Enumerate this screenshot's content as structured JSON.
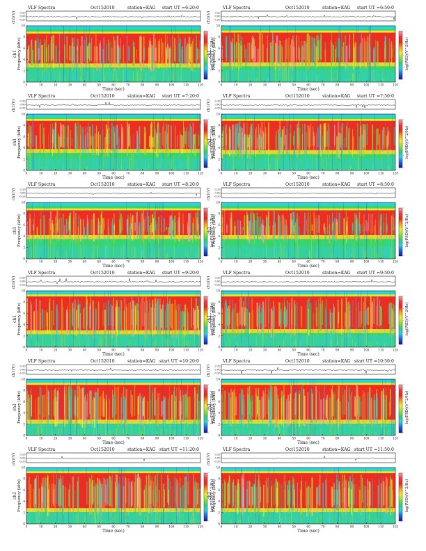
{
  "page": {
    "colorbar_ticks": [
      "-",
      "-",
      "-",
      "-",
      "-"
    ]
  },
  "colormap": [
    "#0b1f8e",
    "#1f5fe0",
    "#2fd0e6",
    "#31cf74",
    "#8fe040",
    "#f4ee2a",
    "#f7a11c",
    "#ea2a1d",
    "#f13c3c",
    "#f7a2b4"
  ],
  "chart_data": [
    {
      "type": "heatmap",
      "title": "VLF Spectra",
      "date": "Oct152010",
      "station": "station=KAG",
      "start": "start  UT =6:20:0",
      "xlabel": "Time (sec)",
      "ylabel": "Frequency (kHz)",
      "channel": "ch1",
      "top_ylabel": "ch1(V)",
      "colorbar_label": "log(PSD)(V^2/Hz)",
      "x": [
        0,
        10,
        20,
        30,
        40,
        50,
        60,
        70,
        80,
        90,
        100,
        110,
        120
      ],
      "y_ticks": [
        0,
        2,
        4,
        6,
        8,
        10
      ],
      "top_y_ticks": [
        "0.20",
        "0.00",
        "-0.20"
      ],
      "xlim": [
        0,
        120
      ],
      "ylim": [
        0,
        10
      ],
      "red_band_khz": [
        3.3,
        8.6
      ]
    },
    {
      "type": "heatmap",
      "title": "VLF Spectra",
      "date": "Oct152010",
      "station": "station=KAG",
      "start": "start  UT =6:50:0",
      "xlabel": "Time (sec)",
      "ylabel": "Frequency (kHz)",
      "channel": "ch1",
      "top_ylabel": "ch1(V)",
      "colorbar_label": "log(PSD)(V^2/Hz)",
      "x": [
        0,
        10,
        20,
        30,
        40,
        50,
        60,
        70,
        80,
        90,
        100,
        110,
        120
      ],
      "y_ticks": [
        0,
        2,
        4,
        6,
        8,
        10
      ],
      "top_y_ticks": [
        "0.20",
        "0.00",
        "-0.20"
      ],
      "xlim": [
        0,
        120
      ],
      "ylim": [
        0,
        10
      ],
      "red_band_khz": [
        3.5,
        8.8
      ]
    },
    {
      "type": "heatmap",
      "title": "VLF Spectra",
      "date": "Oct152010",
      "station": "station=KAG",
      "start": "start  UT =7:20:0",
      "xlabel": "Time (sec)",
      "ylabel": "Frequency (kHz)",
      "channel": "ch1",
      "top_ylabel": "ch1(V)",
      "colorbar_label": "log(PSD)(V^2/Hz)",
      "x": [
        0,
        10,
        20,
        30,
        40,
        50,
        60,
        70,
        80,
        90,
        100,
        110,
        120
      ],
      "y_ticks": [
        0,
        2,
        4,
        6,
        8,
        10
      ],
      "top_y_ticks": [
        "0.20",
        "0.00",
        "-0.20"
      ],
      "xlim": [
        0,
        120
      ],
      "ylim": [
        0,
        10
      ],
      "red_band_khz": [
        3.8,
        8.8
      ]
    },
    {
      "type": "heatmap",
      "title": "VLF Spectra",
      "date": "Oct152010",
      "station": "station=KAG",
      "start": "start  UT =7:50:0",
      "xlabel": "Time (sec)",
      "ylabel": "Frequency (kHz)",
      "channel": "ch1",
      "top_ylabel": "ch1(V)",
      "colorbar_label": "log(PSD)(V^2/Hz)",
      "x": [
        0,
        10,
        20,
        30,
        40,
        50,
        60,
        70,
        80,
        90,
        100,
        110,
        120
      ],
      "y_ticks": [
        0,
        2,
        4,
        6,
        8,
        10
      ],
      "top_y_ticks": [
        "0.20",
        "0.00",
        "-0.20"
      ],
      "xlim": [
        0,
        120
      ],
      "ylim": [
        0,
        10
      ],
      "red_band_khz": [
        3.6,
        8.8
      ]
    },
    {
      "type": "heatmap",
      "title": "VLF Spectra",
      "date": "Oct152010",
      "station": "station=KAG",
      "start": "start  UT =8:20:0",
      "xlabel": "Time (sec)",
      "ylabel": "Frequency (kHz)",
      "channel": "ch1",
      "top_ylabel": "ch1(V)",
      "colorbar_label": "log(PSD)(V^2/Hz)",
      "x": [
        0,
        10,
        20,
        30,
        40,
        50,
        60,
        70,
        80,
        90,
        100,
        110,
        120
      ],
      "y_ticks": [
        0,
        2,
        4,
        6,
        8,
        10
      ],
      "top_y_ticks": [
        "0.20",
        "0.00",
        "-0.20"
      ],
      "xlim": [
        0,
        120
      ],
      "ylim": [
        0,
        10
      ],
      "red_band_khz": [
        4.2,
        8.6
      ]
    },
    {
      "type": "heatmap",
      "title": "VLF Spectra",
      "date": "Oct152010",
      "station": "station=KAG",
      "start": "start  UT =8:50:0",
      "xlabel": "Time (sec)",
      "ylabel": "Frequency (kHz)",
      "channel": "ch1",
      "top_ylabel": "ch1(V)",
      "colorbar_label": "log(PSD)(V^2/Hz)",
      "x": [
        0,
        10,
        20,
        30,
        40,
        50,
        60,
        70,
        80,
        90,
        100,
        110,
        120
      ],
      "y_ticks": [
        0,
        2,
        4,
        6,
        8,
        10
      ],
      "top_y_ticks": [
        "0.20",
        "0.00",
        "-0.20"
      ],
      "xlim": [
        0,
        120
      ],
      "ylim": [
        0,
        10
      ],
      "red_band_khz": [
        4.2,
        8.6
      ]
    },
    {
      "type": "heatmap",
      "title": "VLF Spectra",
      "date": "Oct152010",
      "station": "station=KAG",
      "start": "start  UT =9:20:0",
      "xlabel": "Time (sec)",
      "ylabel": "Frequency (kHz)",
      "channel": "ch1",
      "top_ylabel": "ch1(V)",
      "colorbar_label": "log(PSD)(V^2/Hz)",
      "x": [
        0,
        10,
        20,
        30,
        40,
        50,
        60,
        70,
        80,
        90,
        100,
        110,
        120
      ],
      "y_ticks": [
        0,
        2,
        4,
        6,
        8,
        10
      ],
      "top_y_ticks": [
        "0.20",
        "0.00",
        "-0.20"
      ],
      "xlim": [
        0,
        120
      ],
      "ylim": [
        0,
        10
      ],
      "red_band_khz": [
        3.0,
        9.0
      ]
    },
    {
      "type": "heatmap",
      "title": "VLF Spectra",
      "date": "Oct152010",
      "station": "station=KAG",
      "start": "start  UT =9:50:0",
      "xlabel": "Time (sec)",
      "ylabel": "Frequency (kHz)",
      "channel": "ch1",
      "top_ylabel": "ch1(V)",
      "colorbar_label": "log(PSD)(V^2/Hz)",
      "x": [
        0,
        10,
        20,
        30,
        40,
        50,
        60,
        70,
        80,
        90,
        100,
        110,
        120
      ],
      "y_ticks": [
        0,
        2,
        4,
        6,
        8,
        10
      ],
      "top_y_ticks": [
        "0.20",
        "0.00",
        "-0.20"
      ],
      "xlim": [
        0,
        120
      ],
      "ylim": [
        0,
        10
      ],
      "red_band_khz": [
        3.2,
        9.0
      ]
    },
    {
      "type": "heatmap",
      "title": "VLF Spectra",
      "date": "Oct152010",
      "station": "station=KAG",
      "start": "start  UT =10:20:0",
      "xlabel": "Time (sec)",
      "ylabel": "Frequency (kHz)",
      "channel": "ch1",
      "top_ylabel": "ch1(V)",
      "colorbar_label": "log(PSD)(V^2/Hz)",
      "x": [
        0,
        10,
        20,
        30,
        40,
        50,
        60,
        70,
        80,
        90,
        100,
        110,
        120
      ],
      "y_ticks": [
        0,
        2,
        4,
        6,
        8,
        10
      ],
      "top_y_ticks": [
        "0.20",
        "0.00",
        "-0.20"
      ],
      "xlim": [
        0,
        120
      ],
      "ylim": [
        0,
        10
      ],
      "red_band_khz": [
        2.8,
        9.0
      ]
    },
    {
      "type": "heatmap",
      "title": "VLF Spectra",
      "date": "Oct152010",
      "station": "station=KAG",
      "start": "start  UT =10:50:0",
      "xlabel": "Time (sec)",
      "ylabel": "Frequency (kHz)",
      "channel": "ch1",
      "top_ylabel": "ch1(V)",
      "colorbar_label": "log(PSD)(V^2/Hz)",
      "x": [
        0,
        10,
        20,
        30,
        40,
        50,
        60,
        70,
        80,
        90,
        100,
        110,
        120
      ],
      "y_ticks": [
        0,
        2,
        4,
        6,
        8,
        10
      ],
      "top_y_ticks": [
        "0.20",
        "0.00",
        "-0.20"
      ],
      "xlim": [
        0,
        120
      ],
      "ylim": [
        0,
        10
      ],
      "red_band_khz": [
        2.8,
        9.0
      ]
    },
    {
      "type": "heatmap",
      "title": "VLF Spectra",
      "date": "Oct152010",
      "station": "station=KAG",
      "start": "start  UT =11:20:0",
      "xlabel": "Time (sec)",
      "ylabel": "Frequency (kHz)",
      "channel": "ch1",
      "top_ylabel": "ch1(V)",
      "colorbar_label": "log(PSD)(V^2/Hz)",
      "x": [
        0,
        10,
        20,
        30,
        40,
        50,
        60,
        70,
        80,
        90,
        100,
        110,
        120
      ],
      "y_ticks": [
        0,
        2,
        4,
        6,
        8,
        10
      ],
      "top_y_ticks": [
        "0.20",
        "0.00",
        "-0.20"
      ],
      "xlim": [
        0,
        120
      ],
      "ylim": [
        0,
        10
      ],
      "red_band_khz": [
        2.8,
        9.0
      ]
    },
    {
      "type": "heatmap",
      "title": "VLF Spectra",
      "date": "Oct152010",
      "station": "station=KAG",
      "start": "start  UT =11:50:0",
      "xlabel": "Time (sec)",
      "ylabel": "Frequency (kHz)",
      "channel": "ch1",
      "top_ylabel": "ch1(V)",
      "colorbar_label": "log(PSD)(V^2/Hz)",
      "x": [
        0,
        10,
        20,
        30,
        40,
        50,
        60,
        70,
        80,
        90,
        100,
        110,
        120
      ],
      "y_ticks": [
        0,
        2,
        4,
        6,
        8,
        10
      ],
      "top_y_ticks": [
        "0.20",
        "0.00",
        "-0.20"
      ],
      "xlim": [
        0,
        120
      ],
      "ylim": [
        0,
        10
      ],
      "red_band_khz": [
        2.8,
        9.0
      ]
    }
  ]
}
